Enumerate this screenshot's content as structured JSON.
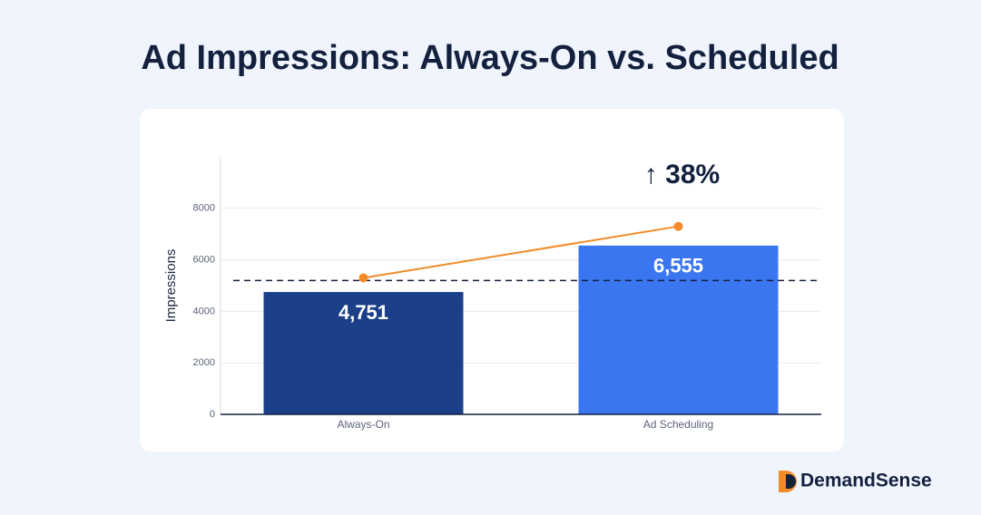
{
  "chart_data": {
    "type": "bar",
    "title": "Ad Impressions: Always-On vs. Scheduled",
    "y_label": "Impressions",
    "categories": [
      "Always-On",
      "Ad Scheduling"
    ],
    "values": [
      4751,
      6555
    ],
    "value_labels": [
      "4,751",
      "6,555"
    ],
    "colors": [
      "#1b3f88",
      "#3b76f1"
    ],
    "trend": {
      "color": "#f28c28",
      "values": [
        5300,
        7300
      ]
    },
    "reference_line": 5200,
    "annotation": "↑ 38%",
    "ylim": [
      0,
      10000
    ],
    "yticks": [
      0,
      2000,
      4000,
      6000,
      8000
    ],
    "grid": true
  },
  "brand": "DemandSense"
}
